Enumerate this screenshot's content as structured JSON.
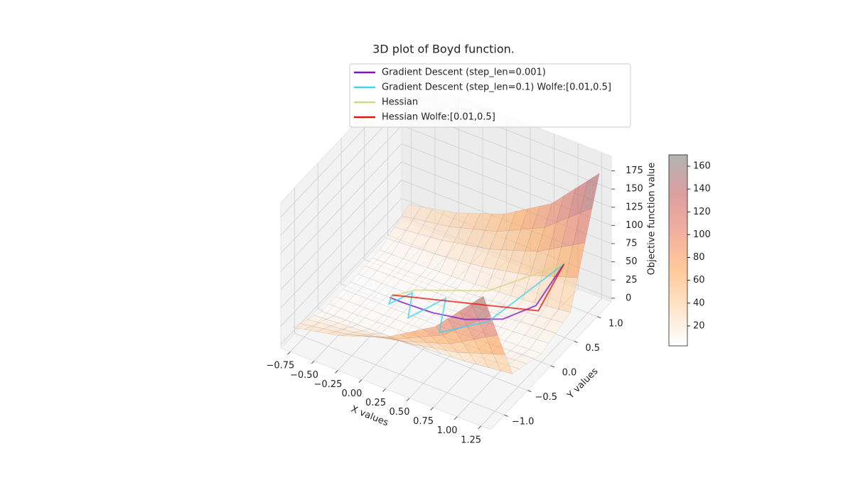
{
  "chart_data": {
    "type": "surface3d",
    "title": "3D plot of Boyd function.",
    "xlabel": "X values",
    "ylabel": "Y values",
    "zlabel": "Objective function value",
    "xlim": [
      -0.85,
      1.35
    ],
    "xticks": [
      {
        "value": -0.75,
        "label": "−0.75"
      },
      {
        "value": -0.5,
        "label": "−0.50"
      },
      {
        "value": -0.25,
        "label": "−0.25"
      },
      {
        "value": 0,
        "label": "0.00"
      },
      0.25,
      {
        "value": 0.5,
        "label": "0.50"
      },
      0.75,
      {
        "value": 1,
        "label": "1.00"
      },
      1.25
    ],
    "ylim": [
      -1.3,
      1.3
    ],
    "yticks": [
      {
        "value": -1,
        "label": "−1.0"
      },
      {
        "value": -0.5,
        "label": "−0.5"
      },
      {
        "value": 0,
        "label": "0.0"
      },
      0.5,
      {
        "value": 1,
        "label": "1.0"
      }
    ],
    "zlim": [
      -5,
      195
    ],
    "zticks": [
      0,
      25,
      50,
      75,
      100,
      125,
      150,
      175
    ],
    "grid": true,
    "surface": {
      "x": [
        -0.75,
        -0.25,
        0.25,
        0.75,
        1.25
      ],
      "y": [
        -1.25,
        -0.625,
        0,
        0.625,
        1.25
      ],
      "z": [
        [
          25,
          4.8,
          2.8,
          4.8,
          25
        ],
        [
          39,
          5.9,
          2.6,
          5.9,
          39
        ],
        [
          63,
          8.5,
          3.0,
          8.5,
          63
        ],
        [
          103,
          13,
          4.3,
          13,
          103
        ],
        [
          170,
          21,
          6.6,
          21,
          170
        ]
      ]
    },
    "colormap": [
      "#ffffff",
      "#ffd2a6",
      "#ffa555",
      "#e87a62",
      "#c35e5e",
      "#808080"
    ],
    "colorbar": {
      "clim": [
        2.5,
        170
      ],
      "ticks": [
        20,
        40,
        60,
        80,
        100,
        120,
        140,
        160
      ]
    },
    "legend": "upper center",
    "series": [
      {
        "name": "Gradient Descent (step_len=0.001)",
        "color": "#7b16c9",
        "x": [
          1,
          0.9,
          0.7,
          0.4,
          0.1,
          -0.2,
          -0.34
        ],
        "y": [
          1,
          0.6,
          0.3,
          0.1,
          0.02,
          0,
          0
        ],
        "z": [
          49.6,
          14.2,
          5.67,
          3.43,
          2.82,
          2.59,
          2.56
        ]
      },
      {
        "name": "Gradient Descent (step_len=0.1) Wolfe:[0.01,0.5]",
        "color": "#3fd4e8",
        "x": [
          1,
          0.6,
          0.3,
          0.1,
          -0.05,
          -0.2,
          -0.3,
          -0.34
        ],
        "y": [
          1,
          0.2,
          -0.25,
          0.3,
          -0.2,
          0.2,
          -0.1,
          0.05
        ],
        "z": [
          49.6,
          4.41,
          3.83,
          3.69,
          2.99,
          2.86,
          2.62,
          2.57
        ]
      },
      {
        "name": "Hessian",
        "color": "#d8d48a",
        "x": [
          1,
          0.4,
          -0.2,
          -0.34
        ],
        "y": [
          1,
          0.6,
          0.25,
          0.02
        ],
        "z": [
          49.6,
          8.99,
          3.02,
          2.56
        ]
      },
      {
        "name": "Hessian Wolfe:[0.01,0.5]",
        "color": "#e0190f",
        "x": [
          1,
          0.95,
          -0.34
        ],
        "y": [
          1,
          0.55,
          0.05
        ],
        "z": [
          49.6,
          12.98,
          2.57
        ]
      }
    ]
  }
}
